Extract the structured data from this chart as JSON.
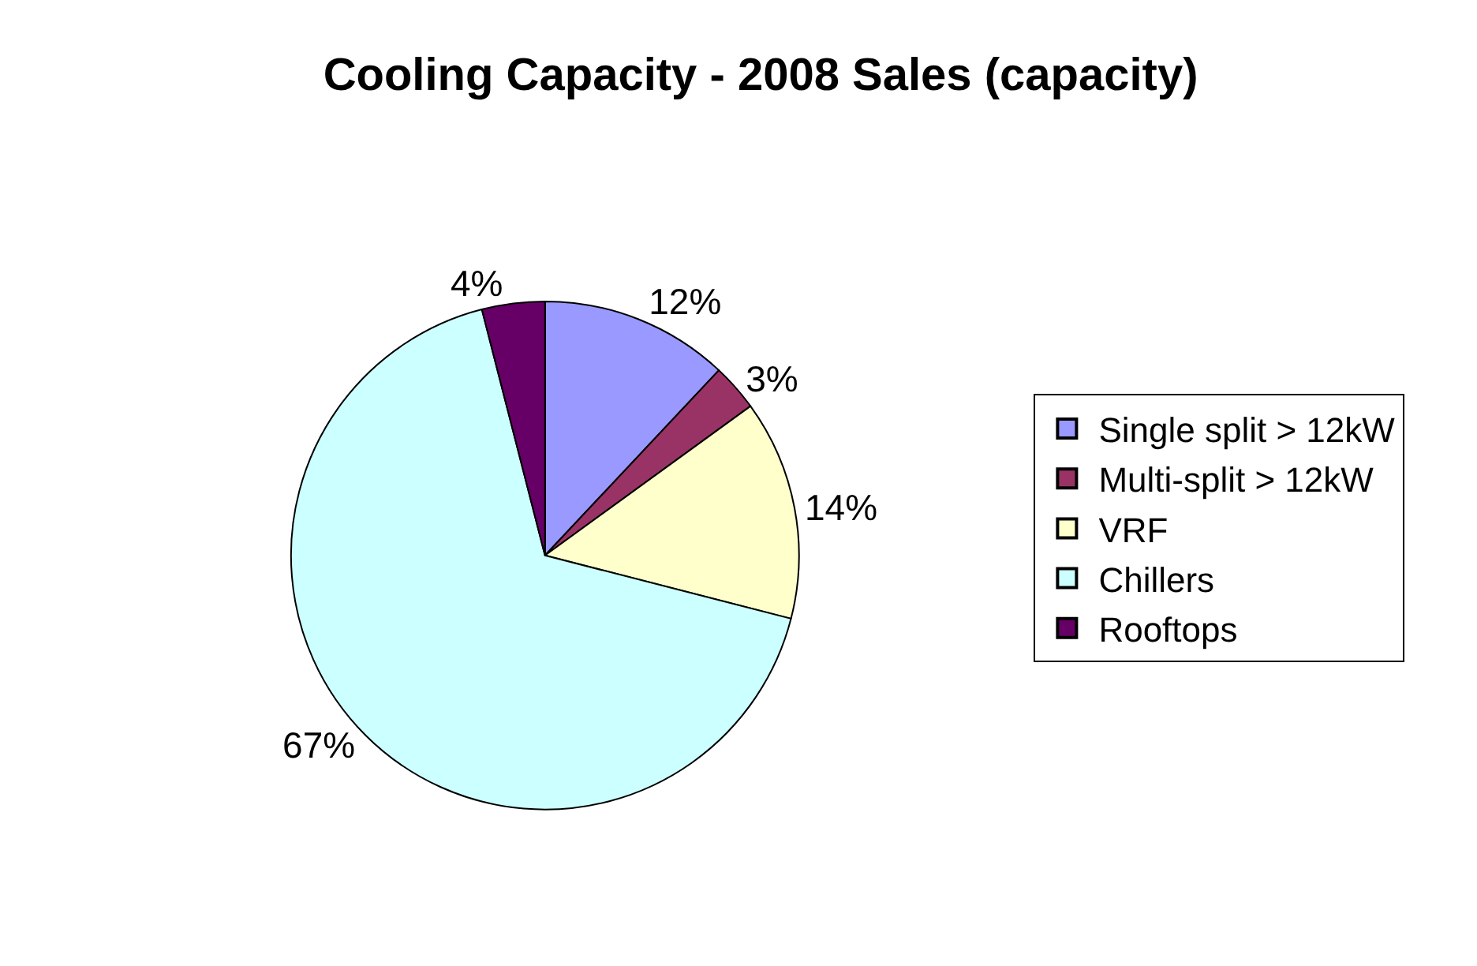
{
  "chart_data": {
    "type": "pie",
    "title": "Cooling Capacity - 2008 Sales (capacity)",
    "categories": [
      "Single split > 12kW",
      "Multi-split > 12kW",
      "VRF",
      "Chillers",
      "Rooftops"
    ],
    "values": [
      12,
      3,
      14,
      67,
      4
    ],
    "value_labels": [
      "12%",
      "3%",
      "14%",
      "67%",
      "4%"
    ],
    "colors": [
      "#9999ff",
      "#993366",
      "#ffffcc",
      "#ccffff",
      "#660066"
    ],
    "legend": "right"
  }
}
